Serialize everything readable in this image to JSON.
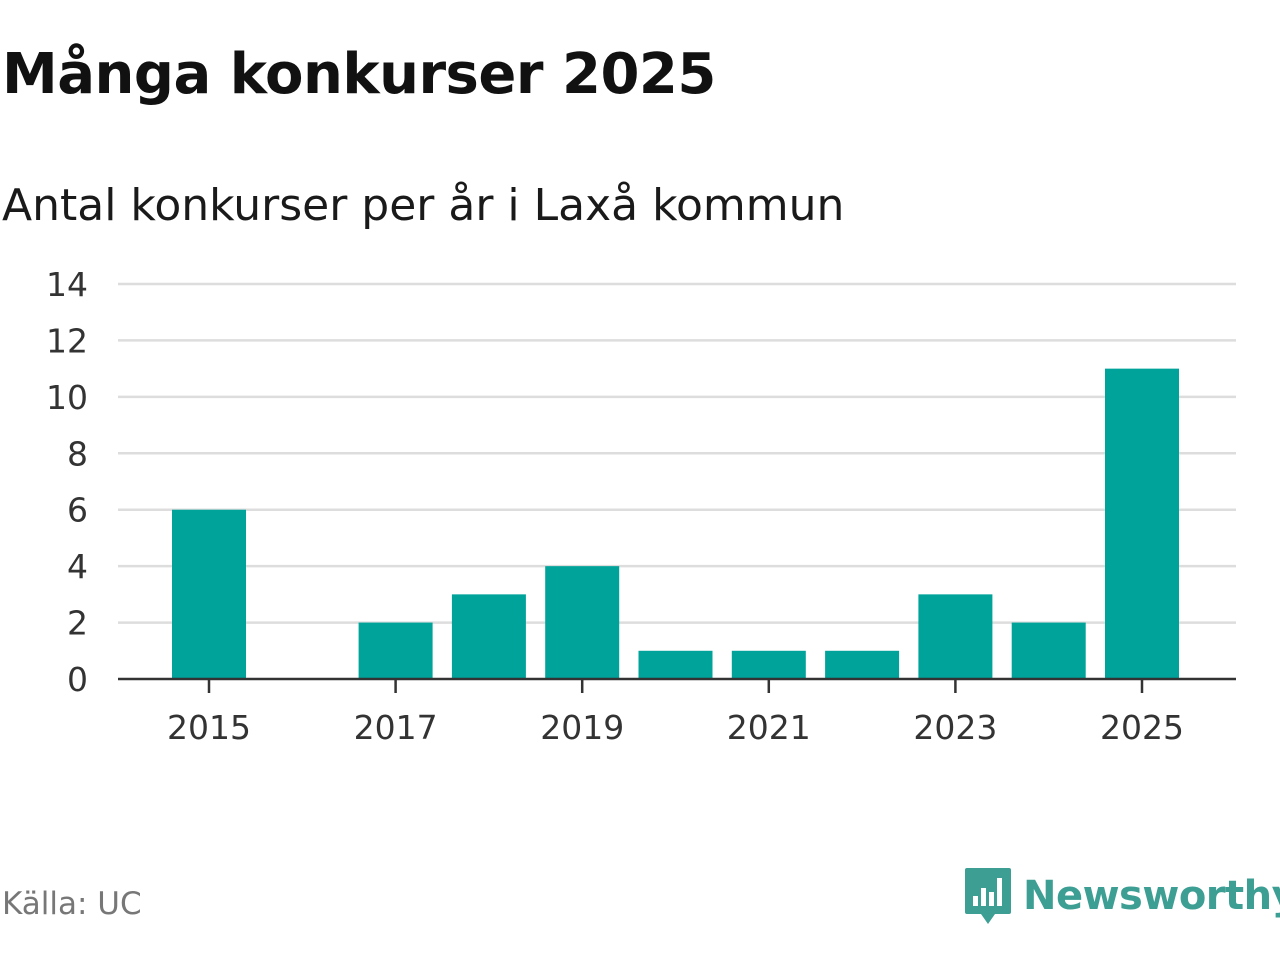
{
  "title": "Många konkurser 2025",
  "subtitle": "Antal konkurser per år i Laxå kommun",
  "source": "Källa: UC",
  "brand": {
    "name": "Newsworthy",
    "icon": "newsworthy-logo-icon",
    "color": "#3d9e94"
  },
  "colors": {
    "bar": "#00a39a",
    "grid": "#dddddd",
    "axis": "#333333",
    "tick_text": "#333333"
  },
  "chart_data": {
    "type": "bar",
    "title": "Många konkurser 2025",
    "subtitle": "Antal konkurser per år i Laxå kommun",
    "xlabel": "",
    "ylabel": "",
    "categories": [
      2015,
      2016,
      2017,
      2018,
      2019,
      2020,
      2021,
      2022,
      2023,
      2024,
      2025
    ],
    "values": [
      6,
      0,
      2,
      3,
      4,
      1,
      1,
      1,
      3,
      2,
      11
    ],
    "x_tick_labels": [
      "2015",
      "2017",
      "2019",
      "2021",
      "2023",
      "2025"
    ],
    "yticks": [
      0,
      2,
      4,
      6,
      8,
      10,
      12,
      14
    ],
    "ylim": [
      0,
      14
    ],
    "grid": true,
    "legend": "none"
  }
}
